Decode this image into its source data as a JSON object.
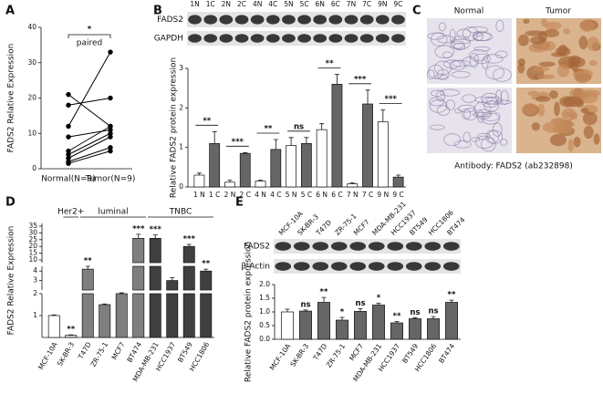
{
  "panel_labels": [
    "A",
    "B",
    "C",
    "D",
    "E"
  ],
  "blot_b": {
    "rows": [
      "FADS2",
      "GAPDH"
    ],
    "lanes": [
      "1N",
      "1C",
      "2N",
      "2C",
      "4N",
      "4C",
      "5N",
      "5C",
      "6N",
      "6C",
      "7N",
      "7C",
      "9N",
      "9C"
    ]
  },
  "panel_c": {
    "columns": [
      "Normal",
      "Tumor"
    ],
    "caption": "Antibody: FADS2 (ab232898)"
  },
  "blot_e": {
    "rows": [
      "FADS2",
      "β-Actin"
    ],
    "lanes": [
      "MCF-10A",
      "SK-BR-3",
      "T47D",
      "ZR-75-1",
      "MCF7",
      "MDA-MB-231",
      "HCC1937",
      "BT549",
      "HCC1806",
      "BT474"
    ]
  },
  "chart_data": [
    {
      "type": "paired",
      "ylabel": "FADS2 Relative Expression",
      "categories": [
        "Normal(N=9)",
        "Tumor(N=9)"
      ],
      "series": [
        {
          "values": [
            21,
            12
          ]
        },
        {
          "values": [
            18,
            20
          ]
        },
        {
          "values": [
            12,
            33
          ]
        },
        {
          "values": [
            9,
            11
          ]
        },
        {
          "values": [
            5,
            12
          ]
        },
        {
          "values": [
            4,
            10
          ]
        },
        {
          "values": [
            3,
            9
          ]
        },
        {
          "values": [
            2,
            6
          ]
        },
        {
          "values": [
            1.5,
            5
          ]
        }
      ],
      "color": "#000000",
      "ylim": [
        0,
        40
      ],
      "yticks": [
        0,
        10,
        20,
        30,
        40
      ],
      "annotations": [
        "*",
        "paired"
      ]
    },
    {
      "type": "bar",
      "ylabel": "Relative FADS2 protein expression",
      "categories": [
        "1 N",
        "1 C",
        "2 N",
        "2 C",
        "4 N",
        "4 C",
        "5 N",
        "5 C",
        "6 N",
        "6 C",
        "7 N",
        "7 C",
        "9 N",
        "9 C"
      ],
      "values": [
        0.3,
        1.1,
        0.12,
        0.85,
        0.15,
        0.95,
        1.05,
        1.1,
        1.45,
        2.6,
        0.08,
        2.1,
        1.65,
        0.25
      ],
      "errors": [
        0.05,
        0.3,
        0.05,
        0.02,
        0.02,
        0.25,
        0.2,
        0.15,
        0.15,
        0.25,
        0.02,
        0.35,
        0.3,
        0.05
      ],
      "colors": [
        "#ffffff",
        "#666666",
        "#ffffff",
        "#666666",
        "#ffffff",
        "#666666",
        "#ffffff",
        "#666666",
        "#ffffff",
        "#666666",
        "#ffffff",
        "#666666",
        "#ffffff",
        "#666666"
      ],
      "ylim": [
        0,
        3
      ],
      "yticks": [
        0,
        1,
        2,
        3
      ],
      "comparisons": [
        "**",
        "***",
        "**",
        "ns",
        "**",
        "***",
        "***"
      ]
    },
    {
      "type": "broken_bar",
      "ylabel": "FADS2 Relative Expression",
      "categories": [
        "MCF-10A",
        "SK-BR-3",
        "T47D",
        "ZR-75-1",
        "MCF7",
        "BT474",
        "MDA-MB-231",
        "HCC1937",
        "BT549",
        "HCC1806"
      ],
      "values": [
        1,
        0.1,
        4.2,
        1.5,
        2.0,
        26,
        26,
        3.0,
        20,
        4.0
      ],
      "errors": [
        0.03,
        0.02,
        0.3,
        0.03,
        0.04,
        3,
        2.5,
        0.3,
        1.5,
        0.2
      ],
      "colors": [
        "#ffffff",
        "#d9d9d9",
        "#7f7f7f",
        "#7f7f7f",
        "#7f7f7f",
        "#7f7f7f",
        "#404040",
        "#404040",
        "#404040",
        "#404040"
      ],
      "segments": [
        {
          "ylim": [
            0,
            2
          ],
          "yticks": [
            1,
            2
          ]
        },
        {
          "ylim": [
            2,
            4.5
          ],
          "yticks": [
            3,
            4
          ]
        },
        {
          "ylim": [
            8,
            37
          ],
          "yticks": [
            10,
            15,
            20,
            25,
            30,
            35
          ]
        }
      ],
      "groups": [
        {
          "name": "Her2+",
          "members": [
            "SK-BR-3"
          ]
        },
        {
          "name": "luminal",
          "members": [
            "T47D",
            "ZR-75-1",
            "MCF7",
            "BT474"
          ]
        },
        {
          "name": "TNBC",
          "members": [
            "MDA-MB-231",
            "HCC1937",
            "BT549",
            "HCC1806"
          ]
        }
      ],
      "annotations": [
        {
          "category": "SK-BR-3",
          "text": "**"
        },
        {
          "category": "T47D",
          "text": "**"
        },
        {
          "category": "BT474",
          "text": "***"
        },
        {
          "category": "MDA-MB-231",
          "text": "***"
        },
        {
          "category": "BT549",
          "text": "***"
        },
        {
          "category": "HCC1806",
          "text": "**"
        }
      ]
    },
    {
      "type": "bar",
      "ylabel": "Relative FADS2 protein expression",
      "categories": [
        "MCF-10A",
        "SK-BR-3",
        "T47D",
        "ZR-75-1",
        "MCF7",
        "MDA-MB-231",
        "HCC1937",
        "BT549",
        "HCC1806",
        "BT474"
      ],
      "values": [
        1.0,
        1.03,
        1.35,
        0.7,
        1.02,
        1.25,
        0.6,
        0.75,
        0.75,
        1.35
      ],
      "errors": [
        0.1,
        0.04,
        0.18,
        0.1,
        0.1,
        0.06,
        0.05,
        0.04,
        0.08,
        0.08
      ],
      "colors": [
        "#ffffff",
        "#666666",
        "#666666",
        "#666666",
        "#666666",
        "#666666",
        "#666666",
        "#666666",
        "#666666",
        "#666666"
      ],
      "ylim": [
        0,
        2
      ],
      "yticks": [
        {
          "value": 0,
          "label": "0.0"
        },
        0.5,
        {
          "value": 1,
          "label": "1.0"
        },
        1.5,
        {
          "value": 2,
          "label": "2.0"
        }
      ],
      "annotations": [
        {
          "category": "SK-BR-3",
          "text": "ns"
        },
        {
          "category": "T47D",
          "text": "**"
        },
        {
          "category": "ZR-75-1",
          "text": "*"
        },
        {
          "category": "MCF7",
          "text": "ns"
        },
        {
          "category": "MDA-MB-231",
          "text": "*"
        },
        {
          "category": "HCC1937",
          "text": "**"
        },
        {
          "category": "BT549",
          "text": "ns"
        },
        {
          "category": "HCC1806",
          "text": "ns"
        },
        {
          "category": "BT474",
          "text": "**"
        }
      ]
    }
  ]
}
